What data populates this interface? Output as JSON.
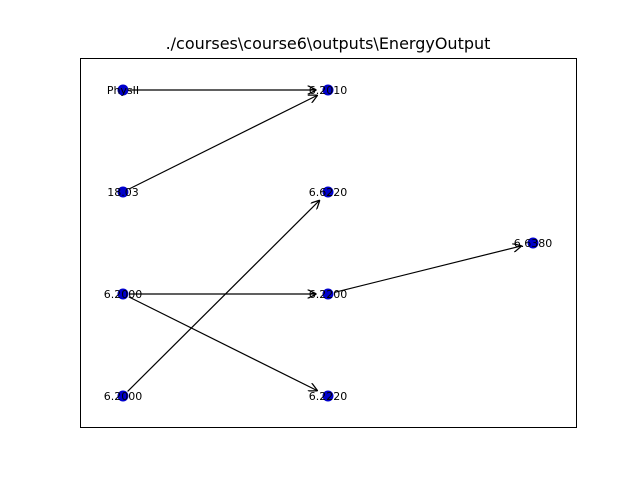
{
  "title": "./courses\\course6\\outputs\\EnergyOutput",
  "colors": {
    "node": "#0000cc",
    "edge": "#000000",
    "frame": "#000000",
    "background": "#ffffff"
  },
  "nodes": [
    {
      "id": "physII",
      "label": "PhysII",
      "column": 0,
      "row": 0
    },
    {
      "id": "n1803",
      "label": "18.03",
      "column": 0,
      "row": 1
    },
    {
      "id": "n62000a",
      "label": "6.2000",
      "column": 0,
      "row": 2
    },
    {
      "id": "n62000b",
      "label": "6.2000",
      "column": 0,
      "row": 3
    },
    {
      "id": "n62010",
      "label": "6.2010",
      "column": 1,
      "row": 0
    },
    {
      "id": "n66220",
      "label": "6.6220",
      "column": 1,
      "row": 1
    },
    {
      "id": "n62200",
      "label": "6.2200",
      "column": 1,
      "row": 2
    },
    {
      "id": "n62220",
      "label": "6.2220",
      "column": 1,
      "row": 3
    },
    {
      "id": "n66380",
      "label": "6.6380",
      "column": 2,
      "row": 1.5
    }
  ],
  "edges": [
    {
      "from": "physII",
      "to": "n62010"
    },
    {
      "from": "n1803",
      "to": "n62010"
    },
    {
      "from": "n62000a",
      "to": "n62200"
    },
    {
      "from": "n62000a",
      "to": "n62220"
    },
    {
      "from": "n62000b",
      "to": "n66220"
    },
    {
      "from": "n62200",
      "to": "n66380"
    }
  ]
}
